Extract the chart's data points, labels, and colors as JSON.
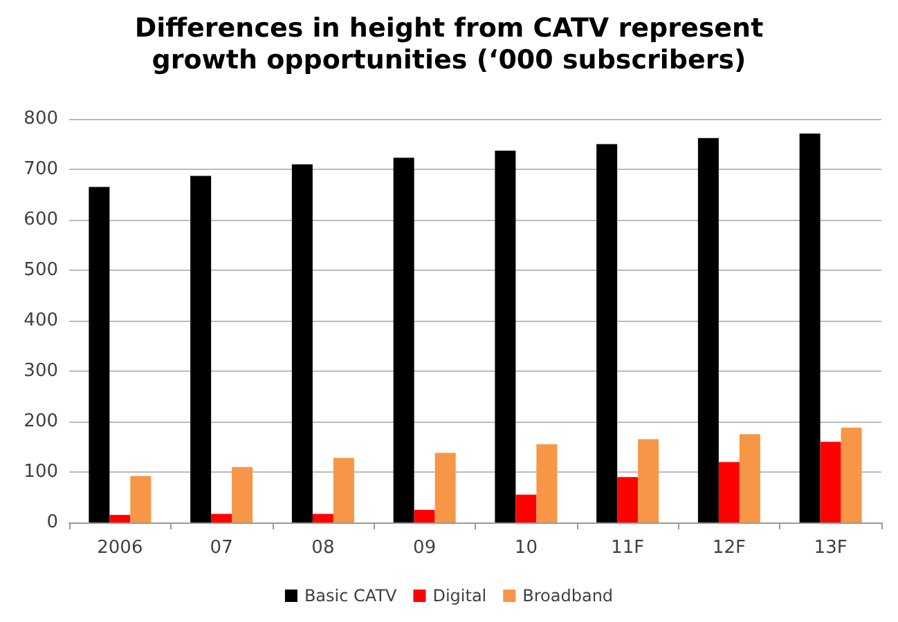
{
  "chart_data": {
    "type": "bar",
    "title": "Differences in height from CATV represent\ngrowth opportunities (‘000 subscribers)",
    "categories": [
      "2006",
      "07",
      "08",
      "09",
      "10",
      "11F",
      "12F",
      "13F"
    ],
    "series": [
      {
        "name": "Basic CATV",
        "color": "#000000",
        "values": [
          665,
          687,
          710,
          723,
          737,
          750,
          762,
          771
        ]
      },
      {
        "name": "Digital",
        "color": "#ff0000",
        "values": [
          15,
          17,
          17,
          25,
          55,
          90,
          120,
          160
        ]
      },
      {
        "name": "Broadband",
        "color": "#f79646",
        "values": [
          92,
          110,
          128,
          138,
          155,
          165,
          175,
          188
        ]
      }
    ],
    "ylim": [
      0,
      800
    ],
    "yticks": [
      0,
      100,
      200,
      300,
      400,
      500,
      600,
      700,
      800
    ],
    "grid": "y",
    "legend": "bottom"
  }
}
